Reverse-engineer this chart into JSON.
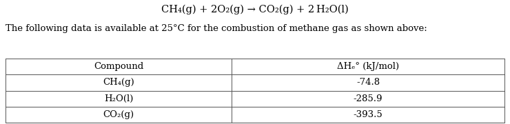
{
  "equation": "CH₄(g) + 2O₂(g) → CO₂(g) + 2 H₂O(l)",
  "subtitle": "The following data is available at 25°C for the combustion of methane gas as shown above:",
  "col_header_left": "Compound",
  "col_header_right": "ΔHₑ° (kJ/mol)",
  "rows": [
    [
      "CH₄(g)",
      "-74.8"
    ],
    [
      "H₂O(l)",
      "-285.9"
    ],
    [
      "CO₂(g)",
      "-393.5"
    ]
  ],
  "bg_color": "#ffffff",
  "text_color": "#000000",
  "table_line_color": "#555555",
  "font_size_eq": 10.5,
  "font_size_sub": 9.5,
  "font_size_table": 9.5
}
